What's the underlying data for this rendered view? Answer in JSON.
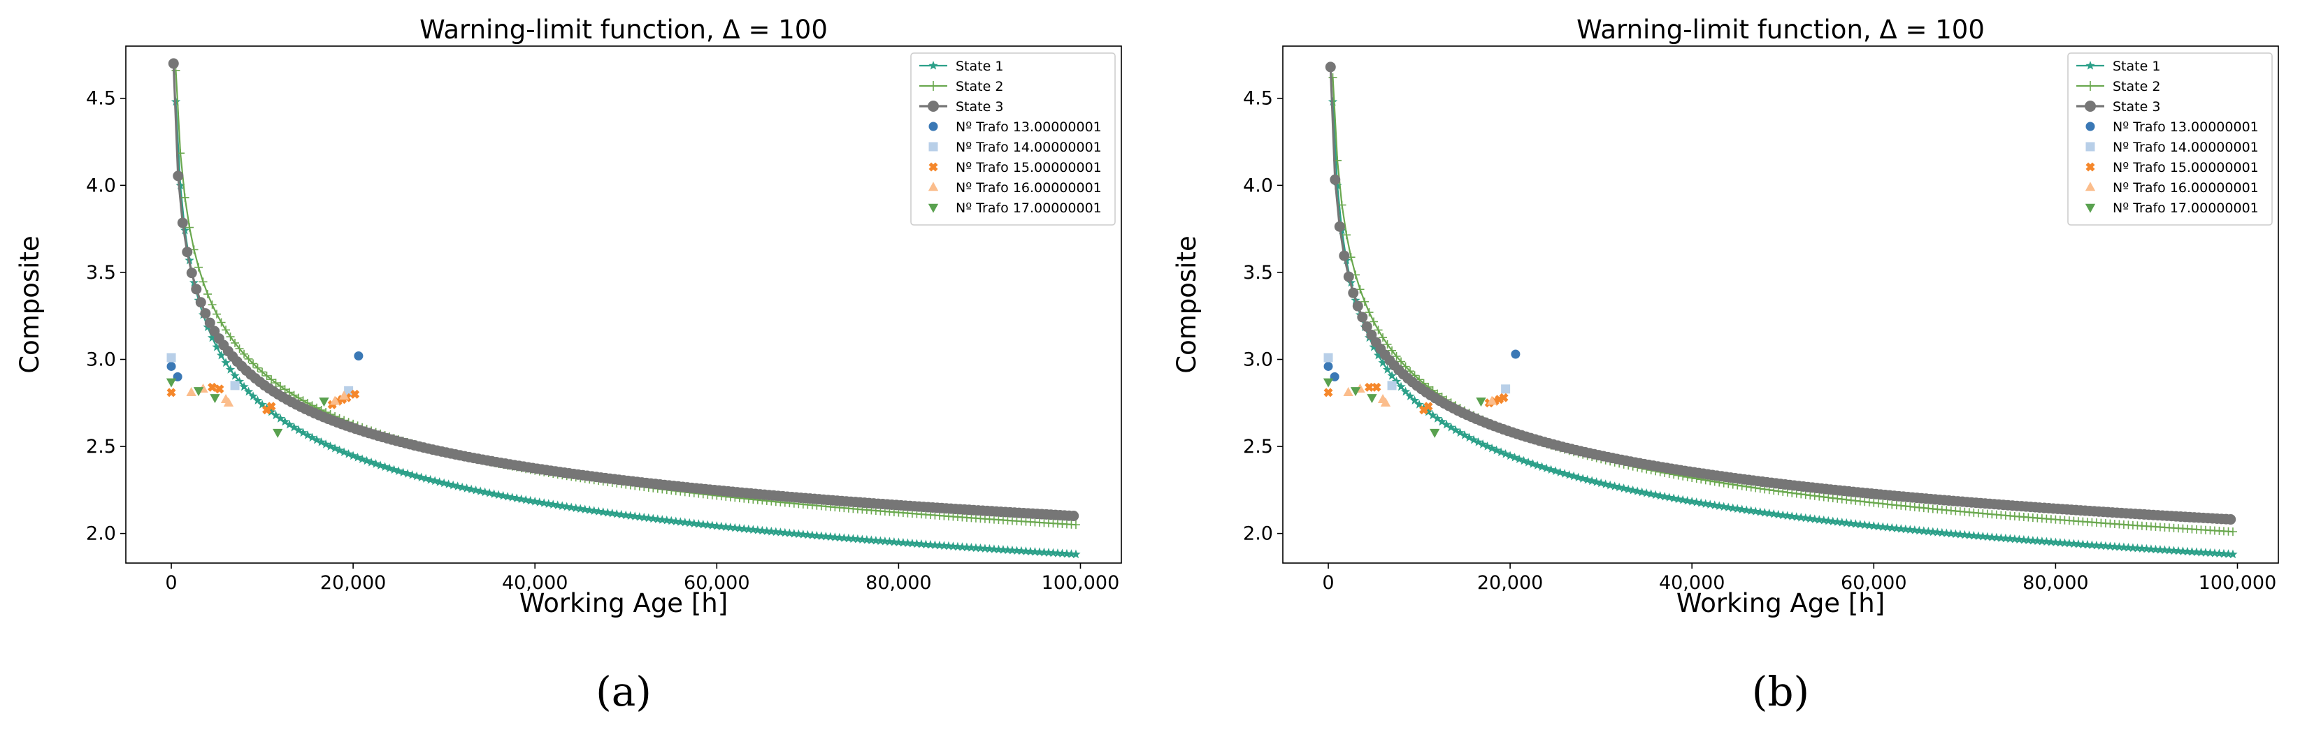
{
  "chart_data": [
    {
      "panel": "a",
      "type": "line",
      "title": "Warning-limit function, Δ = 100",
      "xlabel": "Working Age [h]",
      "ylabel": "Composite",
      "xlim": [
        -5000,
        104500
      ],
      "ylim": [
        1.83,
        4.8
      ],
      "xticks": [
        0,
        20000,
        40000,
        60000,
        80000,
        100000
      ],
      "xtick_labels": [
        "0",
        "20,000",
        "40,000",
        "60,000",
        "80,000",
        "100,000"
      ],
      "yticks": [
        2.0,
        2.5,
        3.0,
        3.5,
        4.0,
        4.5
      ],
      "ytick_labels": [
        "2.0",
        "2.5",
        "3.0",
        "3.5",
        "4.0",
        "4.5"
      ],
      "legend_position": "top-right",
      "caption": "(a)",
      "series": [
        {
          "name": "State 1",
          "kind": "line",
          "marker": "star",
          "color": "#2ca089",
          "k": 0.1052,
          "x_start": 500,
          "x_end": 99500,
          "x_step": 500,
          "y_at_start": 4.48,
          "y_at_end": 1.88
        },
        {
          "name": "State 2",
          "kind": "line",
          "marker": "plus",
          "color": "#6aa84f",
          "k": 0.1045,
          "x_start": 500,
          "x_end": 99500,
          "x_step": 500,
          "y_at_start": 4.66,
          "y_at_end": 2.05
        },
        {
          "name": "State 3",
          "kind": "line",
          "marker": "circle",
          "color": "#767676",
          "k": 0.1036,
          "x_start": 250,
          "x_end": 99500,
          "x_step": 500,
          "y_at_start": 4.7,
          "y_at_end": 2.1
        }
      ],
      "scatter": [
        {
          "name": "Nº Trafo 13.00000001",
          "marker": "circle",
          "color": "#3a78b5",
          "x": [
            0,
            700,
            20600
          ],
          "y": [
            2.96,
            2.9,
            3.02
          ]
        },
        {
          "name": "Nº Trafo 14.00000001",
          "marker": "square",
          "color": "#b8cfe8",
          "x": [
            0,
            7000,
            19500
          ],
          "y": [
            3.01,
            2.85,
            2.82
          ]
        },
        {
          "name": "Nº Trafo 15.00000001",
          "marker": "x",
          "color": "#f5872b",
          "x": [
            0,
            4500,
            5300,
            10500,
            11000,
            17700,
            18300,
            18800
          ],
          "y": [
            2.81,
            2.84,
            2.83,
            2.71,
            2.73,
            2.74,
            2.76,
            2.77
          ],
          "x_extra": [
            19300,
            20200
          ],
          "y_extra": [
            2.78,
            2.8
          ]
        },
        {
          "name": "Nº Trafo 16.00000001",
          "marker": "triangle-up",
          "color": "#fbbd8c",
          "x": [
            2200,
            3500,
            6000,
            6300,
            18000,
            19000
          ],
          "y": [
            2.81,
            2.83,
            2.77,
            2.75,
            2.76,
            2.79
          ]
        },
        {
          "name": "Nº Trafo 17.00000001",
          "marker": "triangle-down",
          "color": "#59a14f",
          "x": [
            0,
            3000,
            4800,
            11700,
            16800
          ],
          "y": [
            2.87,
            2.82,
            2.78,
            2.58,
            2.76
          ]
        }
      ]
    },
    {
      "panel": "b",
      "type": "line",
      "title": "Warning-limit function, Δ = 100",
      "xlabel": "Working Age [h]",
      "ylabel": "Composite",
      "xlim": [
        -5000,
        104500
      ],
      "ylim": [
        1.83,
        4.8
      ],
      "xticks": [
        0,
        20000,
        40000,
        60000,
        80000,
        100000
      ],
      "xtick_labels": [
        "0",
        "20,000",
        "40,000",
        "60,000",
        "80,000",
        "100,000"
      ],
      "yticks": [
        2.0,
        2.5,
        3.0,
        3.5,
        4.0,
        4.5
      ],
      "ytick_labels": [
        "2.0",
        "2.5",
        "3.0",
        "3.5",
        "4.0",
        "4.5"
      ],
      "legend_position": "top-right",
      "caption": "(b)",
      "series": [
        {
          "name": "State 1",
          "kind": "line",
          "marker": "star",
          "color": "#2ca089",
          "k": 0.1052,
          "x_start": 500,
          "x_end": 99500,
          "x_step": 500,
          "y_at_start": 4.48,
          "y_at_end": 1.88
        },
        {
          "name": "State 2",
          "kind": "line",
          "marker": "plus",
          "color": "#6aa84f",
          "k": 0.1065,
          "x_start": 500,
          "x_end": 99500,
          "x_step": 500,
          "y_at_start": 4.62,
          "y_at_end": 2.01
        },
        {
          "name": "State 3",
          "kind": "line",
          "marker": "circle",
          "color": "#767676",
          "k": 0.105,
          "x_start": 250,
          "x_end": 99500,
          "x_step": 500,
          "y_at_start": 4.68,
          "y_at_end": 2.08
        }
      ],
      "scatter": [
        {
          "name": "Nº Trafo 13.00000001",
          "marker": "circle",
          "color": "#3a78b5",
          "x": [
            0,
            700,
            20600
          ],
          "y": [
            2.96,
            2.9,
            3.03
          ]
        },
        {
          "name": "Nº Trafo 14.00000001",
          "marker": "square",
          "color": "#b8cfe8",
          "x": [
            0,
            7000,
            19500
          ],
          "y": [
            3.01,
            2.85,
            2.83
          ]
        },
        {
          "name": "Nº Trafo 15.00000001",
          "marker": "x",
          "color": "#f5872b",
          "x": [
            0,
            4500,
            5300,
            10500,
            11000,
            17700,
            18300,
            18800
          ],
          "y": [
            2.81,
            2.84,
            2.84,
            2.71,
            2.73,
            2.75,
            2.76,
            2.77
          ],
          "x_extra": [
            19300
          ],
          "y_extra": [
            2.78
          ]
        },
        {
          "name": "Nº Trafo 16.00000001",
          "marker": "triangle-up",
          "color": "#fbbd8c",
          "x": [
            2200,
            3500,
            6000,
            6300,
            18000
          ],
          "y": [
            2.81,
            2.83,
            2.77,
            2.75,
            2.76
          ]
        },
        {
          "name": "Nº Trafo 17.00000001",
          "marker": "triangle-down",
          "color": "#59a14f",
          "x": [
            0,
            3000,
            4800,
            11700,
            16800
          ],
          "y": [
            2.87,
            2.82,
            2.78,
            2.58,
            2.76
          ]
        }
      ]
    }
  ]
}
